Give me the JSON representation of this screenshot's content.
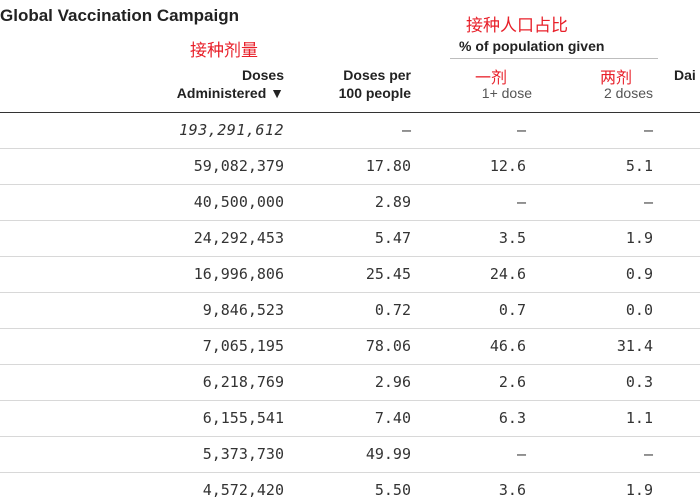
{
  "title": "Global Vaccination Campaign",
  "annotations": {
    "doses": "接种剂量",
    "population_share": "接种人口占比",
    "one_dose": "一剂",
    "two_doses": "两剂"
  },
  "group_label": "% of population given",
  "columns": {
    "doses": {
      "line1": "Doses",
      "line2": "Administered ▼"
    },
    "per100": {
      "line1": "Doses per",
      "line2": "100 people"
    },
    "one_dose": {
      "line1": "",
      "line2": "1+ dose"
    },
    "two_doses": {
      "line1": "",
      "line2": "2 doses"
    },
    "daily": "Dai"
  },
  "rows": [
    {
      "doses": "193,291,612",
      "per100": "–",
      "one": "–",
      "two": "–"
    },
    {
      "doses": "59,082,379",
      "per100": "17.80",
      "one": "12.6",
      "two": "5.1"
    },
    {
      "doses": "40,500,000",
      "per100": "2.89",
      "one": "–",
      "two": "–"
    },
    {
      "doses": "24,292,453",
      "per100": "5.47",
      "one": "3.5",
      "two": "1.9"
    },
    {
      "doses": "16,996,806",
      "per100": "25.45",
      "one": "24.6",
      "two": "0.9"
    },
    {
      "doses": "9,846,523",
      "per100": "0.72",
      "one": "0.7",
      "two": "0.0"
    },
    {
      "doses": "7,065,195",
      "per100": "78.06",
      "one": "46.6",
      "two": "31.4"
    },
    {
      "doses": "6,218,769",
      "per100": "2.96",
      "one": "2.6",
      "two": "0.3"
    },
    {
      "doses": "6,155,541",
      "per100": "7.40",
      "one": "6.3",
      "two": "1.1"
    },
    {
      "doses": "5,373,730",
      "per100": "49.99",
      "one": "–",
      "two": "–"
    },
    {
      "doses": "4,572,420",
      "per100": "5.50",
      "one": "3.6",
      "two": "1.9"
    }
  ]
}
